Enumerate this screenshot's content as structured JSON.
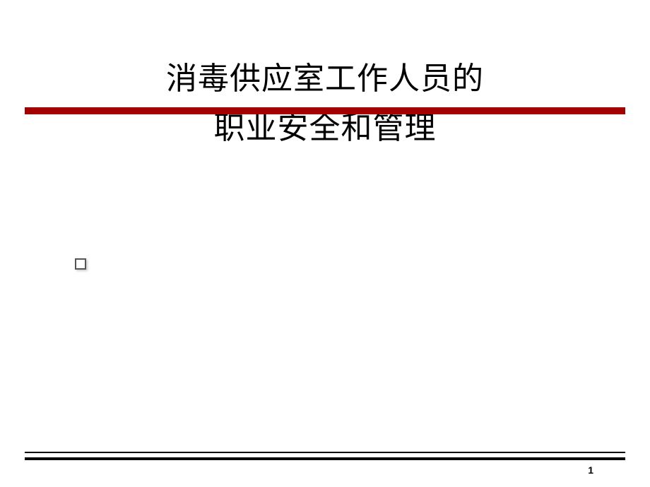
{
  "slide": {
    "title_line1": "消毒供应室工作人员的",
    "title_line2": "职业安全和管理",
    "page_number": "1"
  },
  "style": {
    "background_color": "#ffffff",
    "title_color": "#000000",
    "title_fontsize": 44,
    "divider_color": "#a30000",
    "divider_height": 10,
    "bottom_line_color": "#000000",
    "bullet_border_color": "#555555",
    "page_number_fontsize": 14
  }
}
